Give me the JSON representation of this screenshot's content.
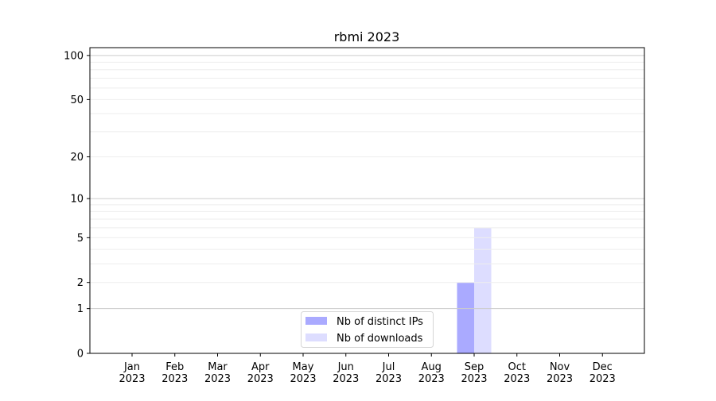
{
  "chart_data": {
    "type": "bar",
    "title": "rbmi 2023",
    "xlabel": "",
    "ylabel": "",
    "y_scale": "log(1+y)",
    "ylim": [
      0,
      113
    ],
    "y_ticks": [
      0,
      1,
      2,
      5,
      10,
      20,
      50,
      100
    ],
    "grid": true,
    "legend_position": "lower-center",
    "categories": [
      "Jan\n2023",
      "Feb\n2023",
      "Mar\n2023",
      "Apr\n2023",
      "May\n2023",
      "Jun\n2023",
      "Jul\n2023",
      "Aug\n2023",
      "Sep\n2023",
      "Oct\n2023",
      "Nov\n2023",
      "Dec\n2023"
    ],
    "series": [
      {
        "name": "Nb of distinct IPs",
        "color": "#aaaaff",
        "values": [
          0,
          0,
          0,
          0,
          0,
          0,
          0,
          0,
          2,
          0,
          0,
          0
        ]
      },
      {
        "name": "Nb of downloads",
        "color": "#ddddff",
        "values": [
          0,
          0,
          0,
          0,
          0,
          0,
          0,
          0,
          6,
          0,
          0,
          0
        ]
      }
    ]
  }
}
